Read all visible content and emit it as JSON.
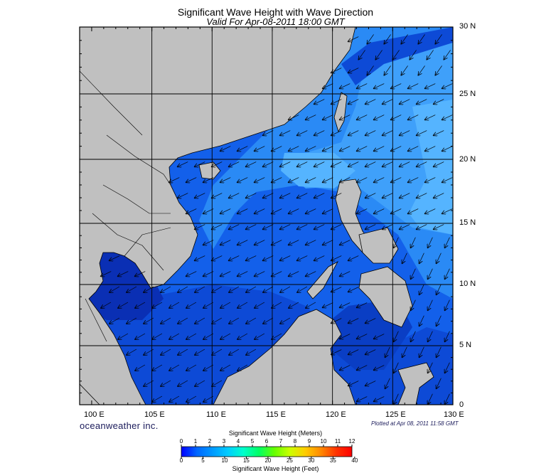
{
  "title": "Significant Wave Height with Wave Direction",
  "subtitle": "Valid For Apr-08-2011 18:00 GMT",
  "credit": "oceanweather inc.",
  "plotted_at": "Plotted at Apr 08, 2011 11:58 GMT",
  "lat_labels": [
    "30 N",
    "25 N",
    "20 N",
    "15 N",
    "10 N",
    "5 N",
    "0"
  ],
  "lon_labels": [
    "100 E",
    "105 E",
    "110 E",
    "115 E",
    "120 E",
    "125 E",
    "130 E"
  ],
  "colorbar": {
    "meters_title": "Significant Wave Height (Meters)",
    "feet_title": "Significant Wave Height (Feet)",
    "meters_ticks": [
      "0",
      "1",
      "2",
      "3",
      "4",
      "5",
      "6",
      "7",
      "8",
      "9",
      "10",
      "11",
      "12"
    ],
    "feet_ticks": [
      "0",
      "5",
      "10",
      "15",
      "20",
      "25",
      "30",
      "35",
      "40"
    ],
    "colors": [
      "#0000ff",
      "#0066ff",
      "#0099ff",
      "#00ccff",
      "#00ffcc",
      "#00ff66",
      "#66ff00",
      "#ccff00",
      "#ffcc00",
      "#ff8800",
      "#ff3300",
      "#ff0000"
    ]
  },
  "colors": {
    "land": "#c0c0c0",
    "sea_dark": "#0a36c8",
    "sea_mid": "#1360ea",
    "sea_light": "#2a8af5",
    "sea_lightest": "#55b4ff",
    "gulf_thailand": "#0a2fb4",
    "strait_malacca": "#051a72"
  },
  "map_extent": {
    "lon": [
      99,
      130
    ],
    "lat": [
      0,
      30
    ]
  }
}
